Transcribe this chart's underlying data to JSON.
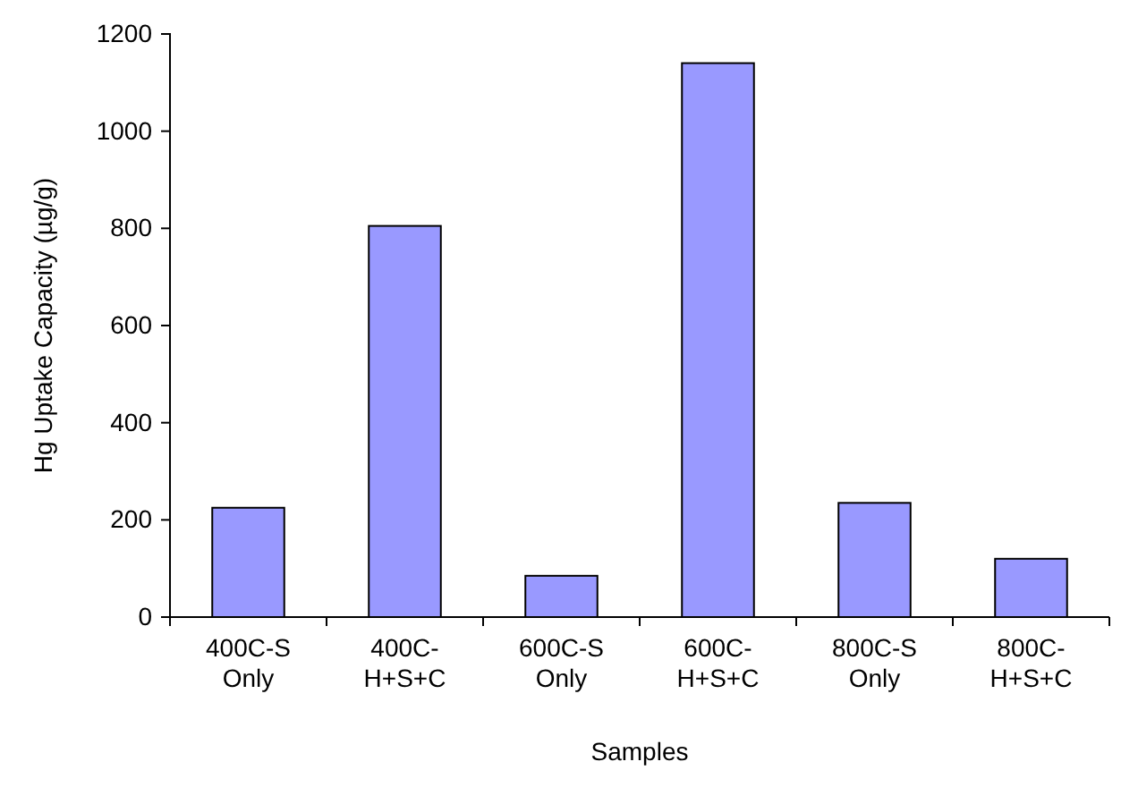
{
  "chart_data": {
    "type": "bar",
    "xlabel": "Samples",
    "ylabel": "Hg Uptake Capacity (µg/g)",
    "categories": [
      "400C-S Only",
      "400C-H+S+C",
      "600C-S Only",
      "600C-H+S+C",
      "800C-S Only",
      "800C-H+S+C"
    ],
    "values": [
      225,
      805,
      85,
      1140,
      235,
      120
    ],
    "color": "#9999ff",
    "ylim": [
      0,
      1200
    ],
    "yticks": [
      0,
      200,
      400,
      600,
      800,
      1000,
      1200
    ],
    "grid": false
  }
}
